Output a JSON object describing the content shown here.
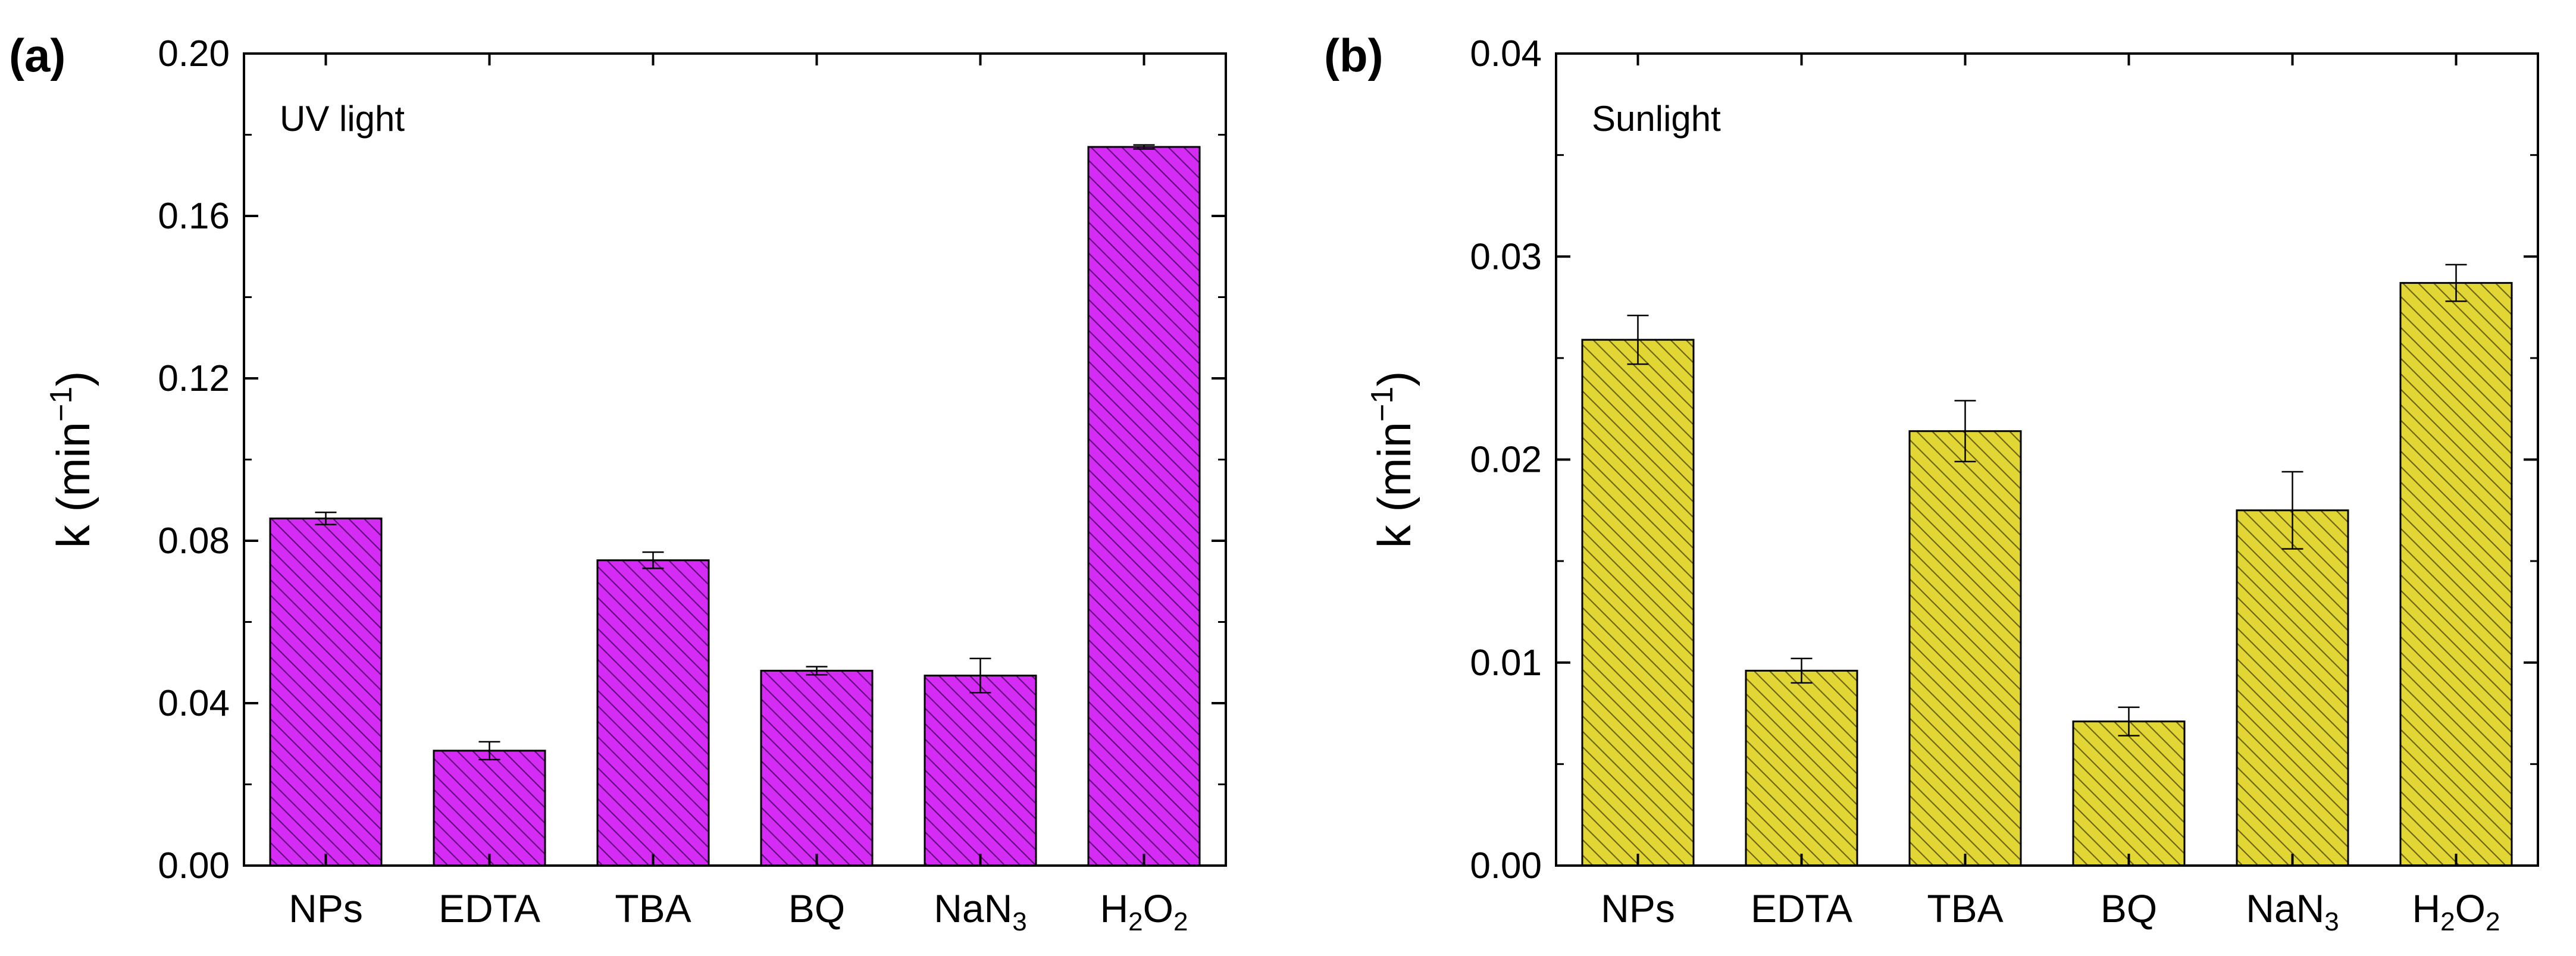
{
  "chart_data": [
    {
      "type": "bar",
      "panel_label": "(a)",
      "annotation": "UV light",
      "title": "",
      "xlabel": "",
      "ylabel": "k (min",
      "ylabel_sup": "−1",
      "ylabel_close": ")",
      "ylim": [
        0,
        0.2
      ],
      "yticks": [
        "0.00",
        "0.04",
        "0.08",
        "0.12",
        "0.16",
        "0.20"
      ],
      "ytick_values": [
        0,
        0.04,
        0.08,
        0.12,
        0.16,
        0.2
      ],
      "categories": [
        "NPs",
        "EDTA",
        "TBA",
        "BQ",
        "NaN3",
        "H2O2"
      ],
      "category_parts": [
        [
          {
            "t": "NPs",
            "sub": false
          }
        ],
        [
          {
            "t": "EDTA",
            "sub": false
          }
        ],
        [
          {
            "t": "TBA",
            "sub": false
          }
        ],
        [
          {
            "t": "BQ",
            "sub": false
          }
        ],
        [
          {
            "t": "NaN",
            "sub": false
          },
          {
            "t": "3",
            "sub": true
          }
        ],
        [
          {
            "t": "H",
            "sub": false
          },
          {
            "t": "2",
            "sub": true
          },
          {
            "t": "O",
            "sub": false
          },
          {
            "t": "2",
            "sub": true
          }
        ]
      ],
      "values": [
        0.0855,
        0.0283,
        0.0752,
        0.048,
        0.0468,
        0.177
      ],
      "errors": [
        0.0015,
        0.0022,
        0.002,
        0.001,
        0.0042,
        0.0005
      ],
      "bar_color": "#d42cf5",
      "hatch_color": "#5a1070"
    },
    {
      "type": "bar",
      "panel_label": "(b)",
      "annotation": "Sunlight",
      "title": "",
      "xlabel": "",
      "ylabel": "k (min",
      "ylabel_sup": "−1",
      "ylabel_close": ")",
      "ylim": [
        0,
        0.04
      ],
      "yticks": [
        "0.00",
        "0.01",
        "0.02",
        "0.03",
        "0.04"
      ],
      "ytick_values": [
        0,
        0.01,
        0.02,
        0.03,
        0.04
      ],
      "categories": [
        "NPs",
        "EDTA",
        "TBA",
        "BQ",
        "NaN3",
        "H2O2"
      ],
      "category_parts": [
        [
          {
            "t": "NPs",
            "sub": false
          }
        ],
        [
          {
            "t": "EDTA",
            "sub": false
          }
        ],
        [
          {
            "t": "TBA",
            "sub": false
          }
        ],
        [
          {
            "t": "BQ",
            "sub": false
          }
        ],
        [
          {
            "t": "NaN",
            "sub": false
          },
          {
            "t": "3",
            "sub": true
          }
        ],
        [
          {
            "t": "H",
            "sub": false
          },
          {
            "t": "2",
            "sub": true
          },
          {
            "t": "O",
            "sub": false
          },
          {
            "t": "2",
            "sub": true
          }
        ]
      ],
      "values": [
        0.0259,
        0.0096,
        0.0214,
        0.0071,
        0.0175,
        0.0287
      ],
      "errors": [
        0.0012,
        0.0006,
        0.0015,
        0.0007,
        0.0019,
        0.0009
      ],
      "bar_color": "#e2d635",
      "hatch_color": "#6b6420"
    }
  ]
}
